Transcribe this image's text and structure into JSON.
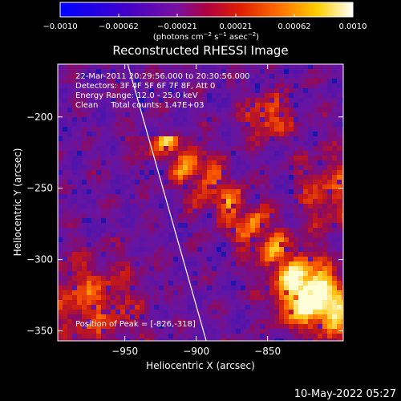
{
  "chart_data": {
    "type": "heatmap",
    "title": "Reconstructed RHESSI Image",
    "xlabel": "Heliocentric X (arcsec)",
    "ylabel": "Heliocentric Y (arcsec)",
    "xlim": [
      -997,
      -797
    ],
    "ylim": [
      -357,
      -163
    ],
    "xticks": [
      {
        "value": -950,
        "label": "−950"
      },
      {
        "value": -900,
        "label": "−900"
      },
      {
        "value": -850,
        "label": "−850"
      }
    ],
    "yticks": [
      {
        "value": -200,
        "label": "−200"
      },
      {
        "value": -250,
        "label": "−250"
      },
      {
        "value": -300,
        "label": "−300"
      },
      {
        "value": -350,
        "label": "−350"
      }
    ],
    "colorbar": {
      "min": -0.001,
      "max": 0.001,
      "tick_labels": [
        "−0.0010",
        "−0.00062",
        "−0.00021",
        "0.00021",
        "0.00062",
        "0.0010"
      ],
      "unit_parts": {
        "pre": "(photons cm",
        "sup1": "−2",
        "mid1": " s",
        "sup2": "−1",
        "mid2": " asec",
        "sup3": "−2",
        "post": ")"
      },
      "colormap": "blue-purple-red-orange-yellow-white"
    },
    "annotations": [
      "22-Mar-2011 20:29:56.000 to 20:30:56.000",
      "Detectors: 3F 4F 5F 6F 7F 8F, Att 0",
      "Energy Range: 12.0 - 25.0 keV",
      "Clean     Total counts: 1.47E+03"
    ],
    "peak": {
      "label": "Position of Peak = [-826,-318]",
      "x": -826,
      "y": -318
    },
    "limb_curve": {
      "x_top": -948,
      "y_top": -163,
      "x_bottom": -893,
      "y_bottom": -357,
      "color": "#ffffff"
    },
    "footer": "10-May-2022 05:27"
  }
}
